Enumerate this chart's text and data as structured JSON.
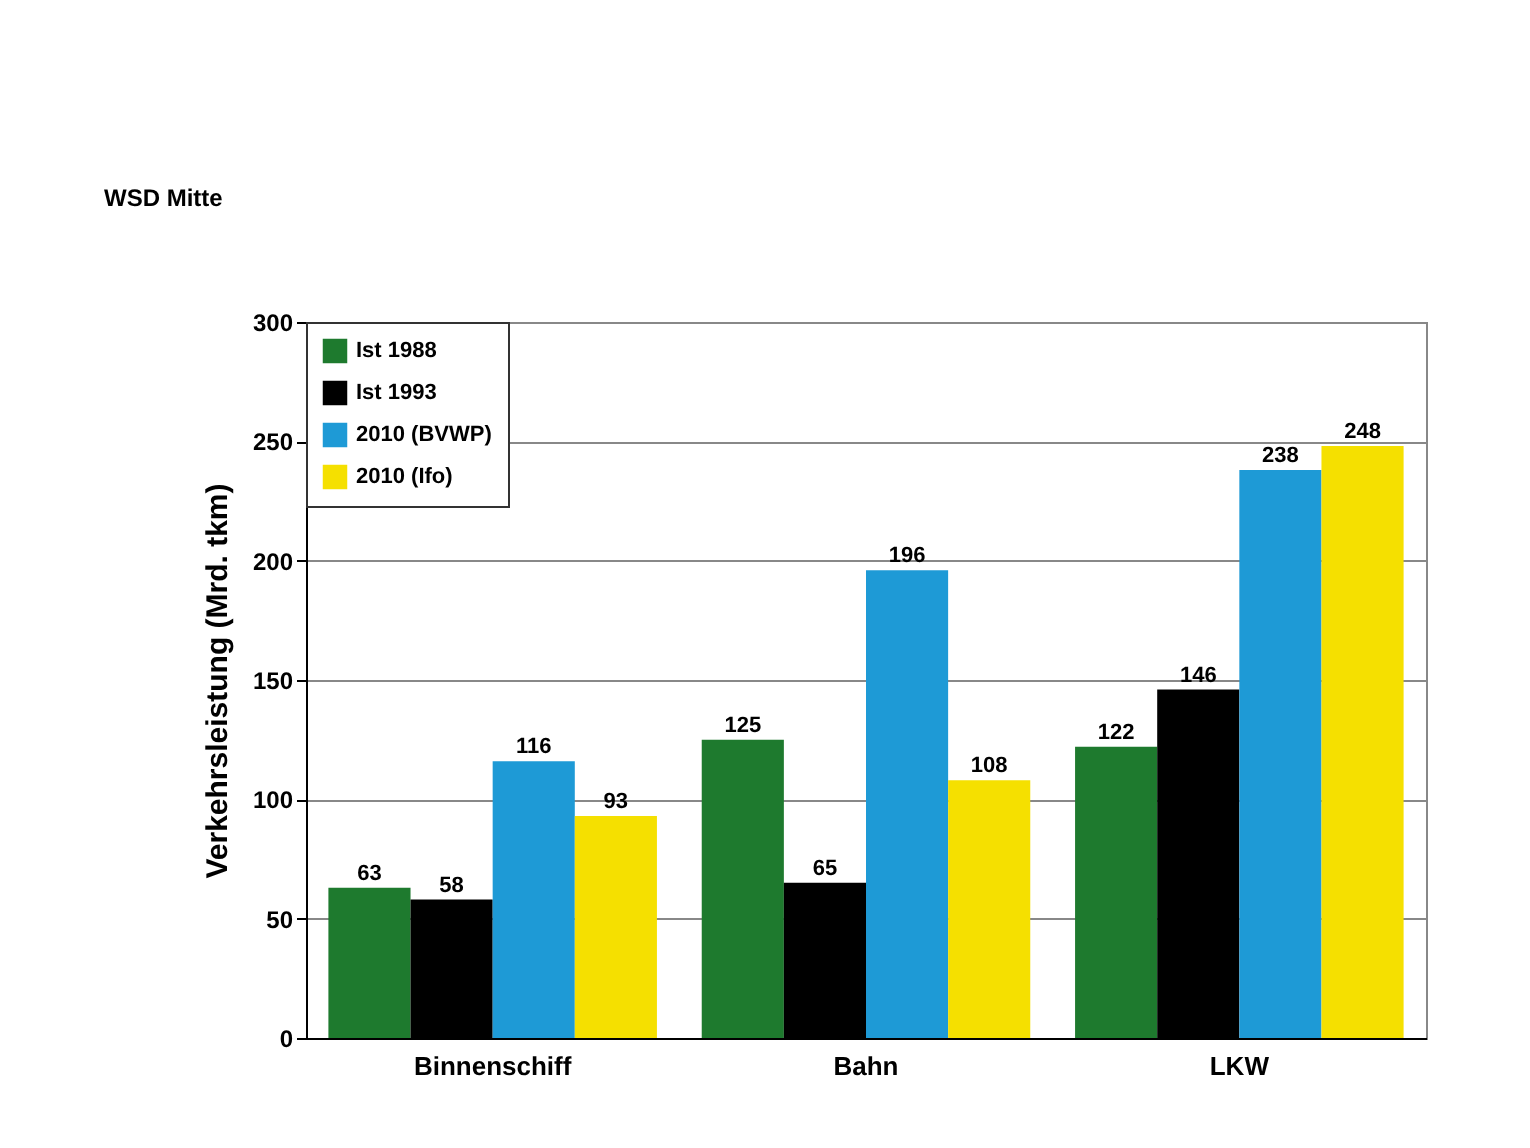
{
  "chart_data": {
    "type": "bar",
    "ylabel": "Verkehrsleistung (Mrd. tkm)",
    "annotations": [
      "WSD Mitte"
    ],
    "categories": [
      "Binnenschiff",
      "Bahn",
      "LKW"
    ],
    "series": [
      {
        "name": "Ist 1988",
        "color": "#1e7a2e",
        "values": [
          63,
          125,
          122
        ]
      },
      {
        "name": "Ist 1993",
        "color": "#000000",
        "values": [
          58,
          65,
          146
        ]
      },
      {
        "name": "2010 (BVWP)",
        "color": "#1e9ad6",
        "values": [
          116,
          196,
          238
        ]
      },
      {
        "name": "2010 (Ifo)",
        "color": "#f5e000",
        "values": [
          93,
          108,
          248
        ]
      }
    ],
    "ylim": [
      0,
      300
    ],
    "yticks": [
      0,
      50,
      100,
      150,
      200,
      250,
      300
    ],
    "grid": "y",
    "legend": "top left",
    "data_labels": true
  }
}
